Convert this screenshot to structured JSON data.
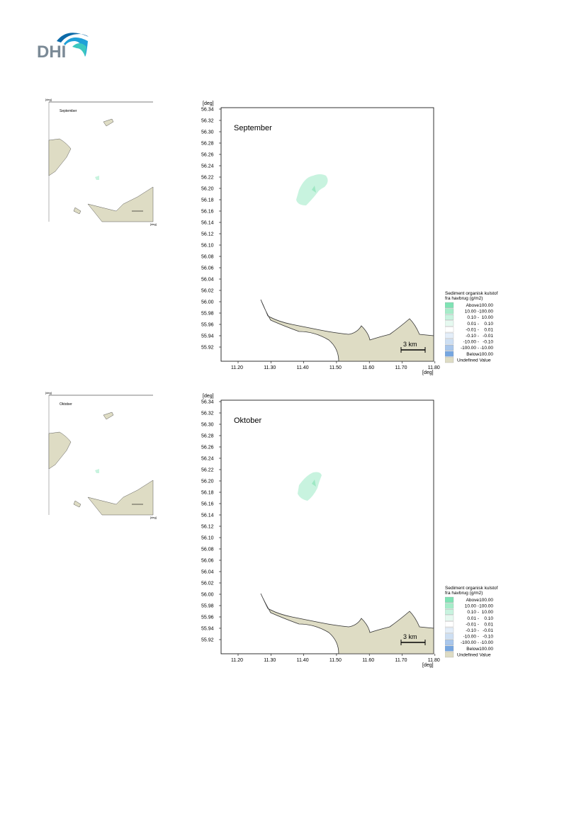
{
  "header": {
    "logo_text": "DHI",
    "brand_colors": [
      "#0b6aa8",
      "#1fa0d8",
      "#3cc8c0"
    ]
  },
  "legend": {
    "title_line1": "Sediment organisk kulstof",
    "title_line2": "fra havbrug (g/m2)",
    "entries": [
      {
        "lo": "Above",
        "hi": "100.00",
        "color": "#7fe3b4"
      },
      {
        "lo": "10.00 -",
        "hi": "100.00",
        "color": "#a6ecc9"
      },
      {
        "lo": "0.10 -",
        "hi": "10.00",
        "color": "#c8f3df"
      },
      {
        "lo": "0.01 -",
        "hi": "0.10",
        "color": "#e6f9f0"
      },
      {
        "lo": "-0.01 -",
        "hi": "0.01",
        "color": "#ffffff"
      },
      {
        "lo": "-0.10 -",
        "hi": "-0.01",
        "color": "#e4eef9"
      },
      {
        "lo": "-10.00 -",
        "hi": "-0.10",
        "color": "#cddff3"
      },
      {
        "lo": "-100.00 -",
        "hi": "-10.00",
        "color": "#a9c7ec"
      },
      {
        "lo": "Below",
        "hi": "-100.00",
        "color": "#76a6e0"
      },
      {
        "lo": "Undefined Value",
        "hi": "",
        "color": "#dedcc4"
      }
    ]
  },
  "maps": [
    {
      "id": "september",
      "label": "September",
      "y_unit": "[deg]",
      "x_unit": "[deg]",
      "y_ticks": [
        "56.34",
        "56.32",
        "56.30",
        "56.28",
        "56.26",
        "56.24",
        "56.22",
        "56.20",
        "56.18",
        "56.16",
        "56.14",
        "56.12",
        "56.10",
        "56.08",
        "56.06",
        "56.04",
        "56.02",
        "56.00",
        "55.98",
        "55.96",
        "55.94",
        "55.92"
      ],
      "x_ticks": [
        "11.20",
        "11.30",
        "11.40",
        "11.50",
        "11.60",
        "11.70",
        "11.80"
      ],
      "scale_bar": "3 km"
    },
    {
      "id": "oktober",
      "label": "Oktober",
      "y_unit": "[deg]",
      "x_unit": "[deg]",
      "y_ticks": [
        "56.34",
        "56.32",
        "56.30",
        "56.28",
        "56.26",
        "56.24",
        "56.22",
        "56.20",
        "56.18",
        "56.16",
        "56.14",
        "56.12",
        "56.10",
        "56.08",
        "56.06",
        "56.04",
        "56.02",
        "56.00",
        "55.98",
        "55.96",
        "55.94",
        "55.92"
      ],
      "x_ticks": [
        "11.20",
        "11.30",
        "11.40",
        "11.50",
        "11.60",
        "11.70",
        "11.80"
      ],
      "scale_bar": "3 km"
    }
  ],
  "thumbnails": [
    {
      "label": "September",
      "y_unit": "[deg]",
      "x_unit": "[deg]"
    },
    {
      "label": "Oktober",
      "y_unit": "[deg]",
      "x_unit": "[deg]"
    }
  ],
  "colors": {
    "land": "#dedcc4",
    "plume_light": "#c8f3df",
    "plume_dark": "#9fe8c4"
  }
}
